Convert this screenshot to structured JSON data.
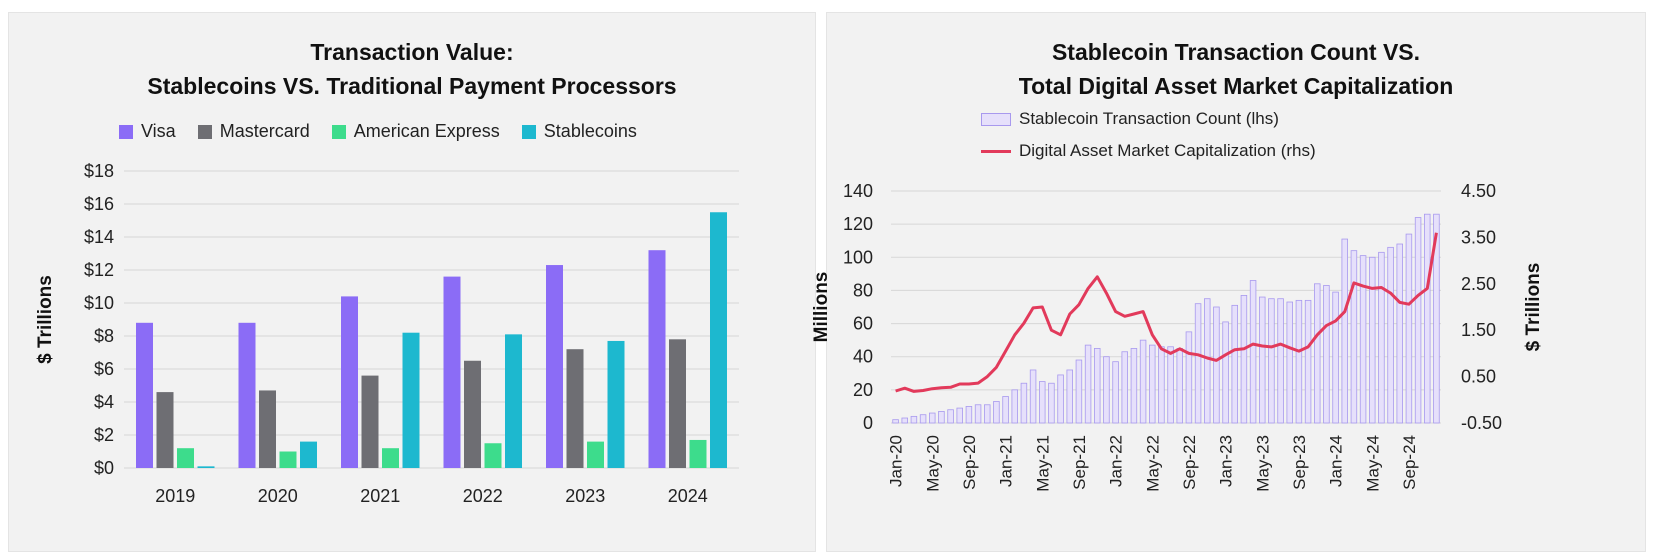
{
  "colors": {
    "visa": "#8B6CF6",
    "mastercard": "#6E6E73",
    "amex": "#3DDC8C",
    "stablecoins": "#1DB8CF",
    "count_bar_fill": "#E6E0FB",
    "count_bar_stroke": "#A899EE",
    "market_cap_line": "#E23A5B"
  },
  "left": {
    "title_line1": "Transaction Value:",
    "title_line2": "Stablecoins VS. Traditional Payment Processors",
    "legend": [
      "Visa",
      "Mastercard",
      "American Express",
      "Stablecoins"
    ]
  },
  "right": {
    "title_line1": "Stablecoin Transaction Count VS.",
    "title_line2": "Total Digital Asset Market Capitalization",
    "legend": [
      "Stablecoin Transaction Count (lhs)",
      "Digital Asset Market Capitalization (rhs)"
    ]
  },
  "chart_data": [
    {
      "type": "bar",
      "title": "Transaction Value: Stablecoins VS. Traditional Payment Processors",
      "xlabel": "",
      "ylabel": "$ Trillions",
      "ylim": [
        0,
        18
      ],
      "yticks": [
        "$0",
        "$2",
        "$4",
        "$6",
        "$8",
        "$10",
        "$12",
        "$14",
        "$16",
        "$18"
      ],
      "categories": [
        "2019",
        "2020",
        "2021",
        "2022",
        "2023",
        "2024"
      ],
      "series": [
        {
          "name": "Visa",
          "values": [
            8.8,
            8.8,
            10.4,
            11.6,
            12.3,
            13.2
          ]
        },
        {
          "name": "Mastercard",
          "values": [
            4.6,
            4.7,
            5.6,
            6.5,
            7.2,
            7.8
          ]
        },
        {
          "name": "American Express",
          "values": [
            1.2,
            1.0,
            1.2,
            1.5,
            1.6,
            1.7
          ]
        },
        {
          "name": "Stablecoins",
          "values": [
            0.1,
            1.6,
            8.2,
            8.1,
            7.7,
            15.5
          ]
        }
      ],
      "legend_position": "top",
      "grid": true
    },
    {
      "type": "bar",
      "title": "Stablecoin Transaction Count VS. Total Digital Asset Market Capitalization",
      "ylabel": "Millions",
      "y2label": "$ Trillions",
      "ylim": [
        0,
        140
      ],
      "yticks": [
        "0",
        "20",
        "40",
        "60",
        "80",
        "100",
        "120",
        "140"
      ],
      "y2lim": [
        -0.5,
        4.5
      ],
      "y2ticks": [
        "-0.50",
        "0.50",
        "1.50",
        "2.50",
        "3.50",
        "4.50"
      ],
      "xtick_labels": [
        "Jan-20",
        "May-20",
        "Sep-20",
        "Jan-21",
        "May-21",
        "Sep-21",
        "Jan-22",
        "May-22",
        "Sep-22",
        "Jan-23",
        "May-23",
        "Sep-23",
        "Jan-24",
        "May-24",
        "Sep-24"
      ],
      "x": [
        "Jan-20",
        "Feb-20",
        "Mar-20",
        "Apr-20",
        "May-20",
        "Jun-20",
        "Jul-20",
        "Aug-20",
        "Sep-20",
        "Oct-20",
        "Nov-20",
        "Dec-20",
        "Jan-21",
        "Feb-21",
        "Mar-21",
        "Apr-21",
        "May-21",
        "Jun-21",
        "Jul-21",
        "Aug-21",
        "Sep-21",
        "Oct-21",
        "Nov-21",
        "Dec-21",
        "Jan-22",
        "Feb-22",
        "Mar-22",
        "Apr-22",
        "May-22",
        "Jun-22",
        "Jul-22",
        "Aug-22",
        "Sep-22",
        "Oct-22",
        "Nov-22",
        "Dec-22",
        "Jan-23",
        "Feb-23",
        "Mar-23",
        "Apr-23",
        "May-23",
        "Jun-23",
        "Jul-23",
        "Aug-23",
        "Sep-23",
        "Oct-23",
        "Nov-23",
        "Dec-23",
        "Jan-24",
        "Feb-24",
        "Mar-24",
        "Apr-24",
        "May-24",
        "Jun-24",
        "Jul-24",
        "Aug-24",
        "Sep-24",
        "Oct-24",
        "Nov-24",
        "Dec-24"
      ],
      "series": [
        {
          "name": "Stablecoin Transaction Count (lhs)",
          "type": "bar",
          "axis": "left",
          "values": [
            2,
            3,
            4,
            5,
            6,
            7,
            8,
            9,
            10,
            11,
            11,
            13,
            16,
            20,
            24,
            32,
            25,
            24,
            29,
            32,
            38,
            47,
            45,
            40,
            37,
            43,
            45,
            50,
            47,
            46,
            46,
            45,
            55,
            72,
            75,
            70,
            61,
            71,
            77,
            86,
            76,
            75,
            75,
            73,
            74,
            74,
            84,
            83,
            79,
            111,
            104,
            101,
            100,
            103,
            106,
            108,
            114,
            124,
            126,
            126
          ]
        },
        {
          "name": "Digital Asset Market Capitalization (rhs)",
          "type": "line",
          "axis": "right",
          "values": [
            0.19,
            0.25,
            0.18,
            0.2,
            0.24,
            0.26,
            0.27,
            0.34,
            0.34,
            0.36,
            0.5,
            0.7,
            1.05,
            1.4,
            1.65,
            1.98,
            2.0,
            1.5,
            1.4,
            1.85,
            2.05,
            2.4,
            2.65,
            2.3,
            1.9,
            1.8,
            1.85,
            1.9,
            1.4,
            1.1,
            1.0,
            1.1,
            1.0,
            0.97,
            0.9,
            0.85,
            0.97,
            1.08,
            1.1,
            1.2,
            1.16,
            1.14,
            1.2,
            1.12,
            1.05,
            1.14,
            1.4,
            1.6,
            1.7,
            1.9,
            2.52,
            2.45,
            2.4,
            2.42,
            2.3,
            2.1,
            2.06,
            2.25,
            2.4,
            3.6
          ]
        }
      ],
      "legend_position": "top",
      "grid": true
    }
  ]
}
